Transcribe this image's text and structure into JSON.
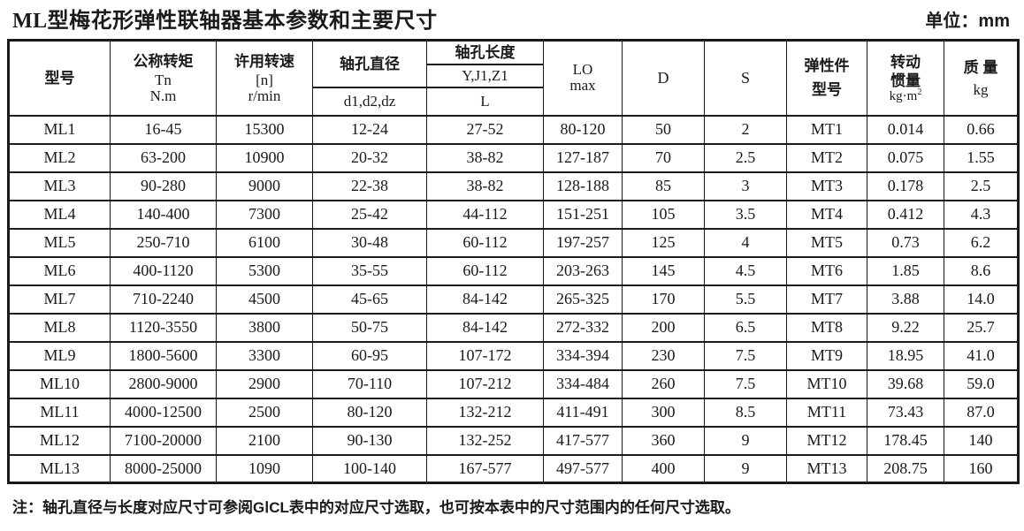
{
  "page": {
    "title": "ML型梅花形弹性联轴器基本参数和主要尺寸",
    "unit_label": "单位：mm",
    "note": "注：轴孔直径与长度对应尺寸可参阅GⅠCL表中的对应尺寸选取，也可按本表中的尺寸范围内的任何尺寸选取。"
  },
  "colors": {
    "text": "#1a1a1a",
    "border": "#1a1a1a",
    "background": "#ffffff"
  },
  "table": {
    "headers": {
      "model": "型号",
      "torque_line1": "公称转矩",
      "torque_line2": "Tn",
      "torque_line3": "N.m",
      "speed_line1": "许用转速",
      "speed_line2": "[n]",
      "speed_line3": "r/min",
      "bore_diameter": "轴孔直径",
      "bore_diameter_sub": "d1,d2,dz",
      "bore_length": "轴孔长度",
      "bore_length_sub1": "Y,J1,Z1",
      "bore_length_sub2": "L",
      "lo_line1": "LO",
      "lo_line2": "max",
      "d": "D",
      "s": "S",
      "elastic_line1": "弹性件",
      "elastic_line2": "型号",
      "inertia_line1": "转动",
      "inertia_line2": "惯量",
      "inertia_unit": "kg·m",
      "inertia_unit_sup": "2",
      "mass_line1": "质 量",
      "mass_line2": "kg"
    },
    "rows": [
      [
        "ML1",
        "16-45",
        "15300",
        "12-24",
        "27-52",
        "80-120",
        "50",
        "2",
        "MT1",
        "0.014",
        "0.66"
      ],
      [
        "ML2",
        "63-200",
        "10900",
        "20-32",
        "38-82",
        "127-187",
        "70",
        "2.5",
        "MT2",
        "0.075",
        "1.55"
      ],
      [
        "ML3",
        "90-280",
        "9000",
        "22-38",
        "38-82",
        "128-188",
        "85",
        "3",
        "MT3",
        "0.178",
        "2.5"
      ],
      [
        "ML4",
        "140-400",
        "7300",
        "25-42",
        "44-112",
        "151-251",
        "105",
        "3.5",
        "MT4",
        "0.412",
        "4.3"
      ],
      [
        "ML5",
        "250-710",
        "6100",
        "30-48",
        "60-112",
        "197-257",
        "125",
        "4",
        "MT5",
        "0.73",
        "6.2"
      ],
      [
        "ML6",
        "400-1120",
        "5300",
        "35-55",
        "60-112",
        "203-263",
        "145",
        "4.5",
        "MT6",
        "1.85",
        "8.6"
      ],
      [
        "ML7",
        "710-2240",
        "4500",
        "45-65",
        "84-142",
        "265-325",
        "170",
        "5.5",
        "MT7",
        "3.88",
        "14.0"
      ],
      [
        "ML8",
        "1120-3550",
        "3800",
        "50-75",
        "84-142",
        "272-332",
        "200",
        "6.5",
        "MT8",
        "9.22",
        "25.7"
      ],
      [
        "ML9",
        "1800-5600",
        "3300",
        "60-95",
        "107-172",
        "334-394",
        "230",
        "7.5",
        "MT9",
        "18.95",
        "41.0"
      ],
      [
        "ML10",
        "2800-9000",
        "2900",
        "70-110",
        "107-212",
        "334-484",
        "260",
        "7.5",
        "MT10",
        "39.68",
        "59.0"
      ],
      [
        "ML11",
        "4000-12500",
        "2500",
        "80-120",
        "132-212",
        "411-491",
        "300",
        "8.5",
        "MT11",
        "73.43",
        "87.0"
      ],
      [
        "ML12",
        "7100-20000",
        "2100",
        "90-130",
        "132-252",
        "417-577",
        "360",
        "9",
        "MT12",
        "178.45",
        "140"
      ],
      [
        "ML13",
        "8000-25000",
        "1090",
        "100-140",
        "167-577",
        "497-577",
        "400",
        "9",
        "MT13",
        "208.75",
        "160"
      ]
    ]
  }
}
